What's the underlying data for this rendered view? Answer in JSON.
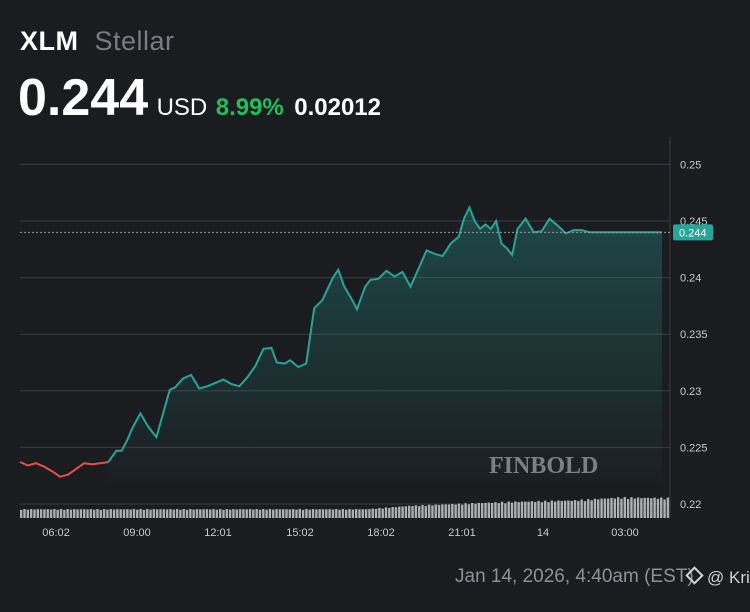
{
  "header": {
    "symbol": "XLM",
    "name": "Stellar",
    "price": "0.244",
    "currency": "USD",
    "change_pct": "8.99%",
    "change_abs": "0.02012"
  },
  "watermark": "FINBOLD",
  "footer": {
    "timestamp": "Jan 14, 2026, 4:40am (EST)",
    "credit": "@ Kri"
  },
  "colors": {
    "up": "#26a69a",
    "down": "#e0534b",
    "change": "#1fbf5b"
  },
  "chart_data": {
    "type": "area",
    "x_ticks": [
      "06:02",
      "09:00",
      "12:01",
      "15:02",
      "18:02",
      "21:01",
      "14",
      "03:00"
    ],
    "y_ticks": [
      "0.25",
      "0.245",
      "0.24",
      "0.235",
      "0.23",
      "0.225",
      "0.22"
    ],
    "ylim": [
      0.2195,
      0.2515
    ],
    "current_label": "0.244",
    "grid": true,
    "series": [
      {
        "segment": "down",
        "x": [
          0,
          0.3,
          0.6,
          0.9,
          1.2,
          1.5,
          1.8,
          2.1,
          2.4,
          2.7,
          3.0,
          3.3
        ],
        "values": [
          0.2237,
          0.2234,
          0.2236,
          0.2233,
          0.2229,
          0.2224,
          0.2226,
          0.2231,
          0.2236,
          0.2235,
          0.2236,
          0.2237
        ]
      },
      {
        "segment": "up",
        "x": [
          3.3,
          3.6,
          3.8,
          4.0,
          4.2,
          4.5,
          4.8,
          5.1,
          5.4,
          5.6,
          5.8,
          6.1,
          6.4,
          6.7,
          7.0,
          7.3,
          7.6,
          7.9,
          8.2,
          8.5,
          8.8,
          9.1,
          9.4,
          9.6,
          9.9,
          10.1,
          10.4,
          10.7,
          11.0,
          11.3,
          11.5,
          11.7,
          11.9,
          12.1,
          12.4,
          12.6,
          12.9,
          13.1,
          13.4,
          13.7,
          14.0,
          14.3,
          14.6,
          14.9,
          15.2,
          15.5,
          15.8,
          16.1,
          16.4,
          16.6,
          16.8,
          17.0,
          17.2,
          17.4,
          17.6,
          17.8,
          18.0,
          18.2,
          18.4,
          18.6,
          18.9,
          19.2,
          19.5,
          19.8,
          20.1,
          20.4,
          20.7,
          21.0,
          21.3,
          21.6,
          21.9,
          22.2,
          22.5,
          22.8,
          23.1,
          23.4,
          23.7,
          24.0
        ],
        "values": [
          0.2237,
          0.2247,
          0.2247,
          0.2256,
          0.2267,
          0.228,
          0.2268,
          0.2259,
          0.2284,
          0.2301,
          0.2303,
          0.2311,
          0.2314,
          0.2302,
          0.2304,
          0.2307,
          0.231,
          0.2306,
          0.2304,
          0.2312,
          0.2322,
          0.2337,
          0.2338,
          0.2325,
          0.2324,
          0.2327,
          0.2321,
          0.2324,
          0.2373,
          0.238,
          0.239,
          0.24,
          0.2407,
          0.2393,
          0.2381,
          0.2372,
          0.2392,
          0.2398,
          0.2399,
          0.2406,
          0.2401,
          0.2405,
          0.2392,
          0.2408,
          0.2424,
          0.2421,
          0.2419,
          0.243,
          0.2436,
          0.2452,
          0.2462,
          0.245,
          0.2443,
          0.2447,
          0.2443,
          0.245,
          0.243,
          0.2426,
          0.242,
          0.2443,
          0.2452,
          0.244,
          0.2441,
          0.2452,
          0.2446,
          0.2439,
          0.2442,
          0.2442,
          0.244,
          0.244,
          0.244,
          0.244,
          0.244,
          0.244,
          0.244,
          0.244,
          0.244,
          0.244
        ]
      }
    ],
    "x_range": [
      0,
      24.3
    ],
    "volume": {
      "count": 196,
      "profile": [
        [
          0,
          0.3
        ],
        [
          0.53,
          0.3
        ],
        [
          0.6,
          0.42
        ],
        [
          0.75,
          0.55
        ],
        [
          0.85,
          0.6
        ],
        [
          0.92,
          0.7
        ],
        [
          1.0,
          0.68
        ]
      ]
    }
  }
}
